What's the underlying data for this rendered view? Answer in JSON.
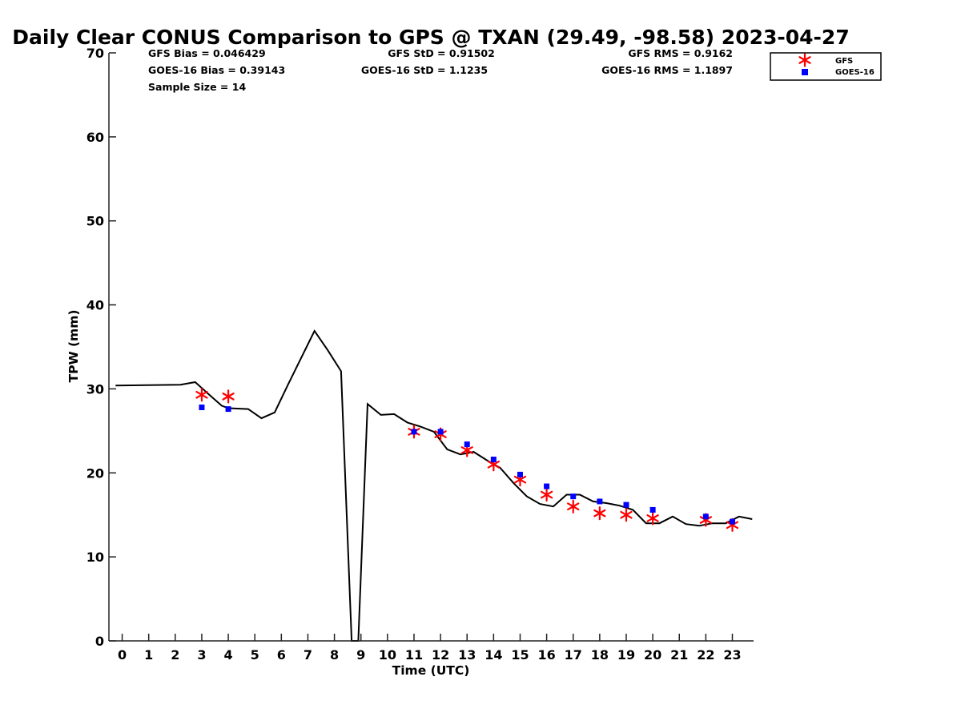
{
  "chart_data": {
    "type": "line",
    "title": "Daily Clear CONUS Comparison to GPS @ TXAN (29.49, -98.58) 2023-04-27",
    "xlabel": "Time (UTC)",
    "ylabel": "TPW (mm)",
    "xlim": [
      -0.5,
      23.8
    ],
    "ylim": [
      0,
      70
    ],
    "xticks": [
      "0",
      "1",
      "2",
      "3",
      "4",
      "5",
      "6",
      "7",
      "8",
      "9",
      "10",
      "11",
      "12",
      "13",
      "14",
      "15",
      "16",
      "17",
      "18",
      "19",
      "20",
      "21",
      "22",
      "23"
    ],
    "yticks": [
      "0",
      "10",
      "20",
      "30",
      "40",
      "50",
      "60",
      "70"
    ],
    "grid": false,
    "legend_position": "top-right",
    "stats": {
      "gfs_bias": "GFS Bias = 0.046429",
      "gfs_std": "GFS StD = 0.91502",
      "gfs_rms": "GFS RMS = 0.9162",
      "goes_bias": "GOES-16 Bias = 0.39143",
      "goes_std": "GOES-16 StD = 1.1235",
      "goes_rms": "GOES-16 RMS = 1.1897",
      "sample_size": "Sample Size = 14"
    },
    "series": [
      {
        "kind": "line",
        "color": "#000000",
        "points": [
          [
            -0.25,
            30.4
          ],
          [
            2.2,
            30.5
          ],
          [
            2.75,
            30.8
          ],
          [
            3.25,
            29.4
          ],
          [
            3.75,
            28.0
          ],
          [
            4.0,
            27.7
          ],
          [
            4.75,
            27.6
          ],
          [
            5.25,
            26.5
          ],
          [
            5.75,
            27.2
          ],
          [
            6.25,
            30.5
          ],
          [
            7.25,
            36.9
          ],
          [
            7.75,
            34.6
          ],
          [
            8.25,
            32.1
          ],
          [
            8.65,
            0
          ],
          [
            8.9,
            0
          ],
          [
            9.25,
            28.2
          ],
          [
            9.75,
            26.9
          ],
          [
            10.25,
            27.0
          ],
          [
            10.75,
            26.0
          ],
          [
            11.25,
            25.5
          ],
          [
            11.75,
            24.9
          ],
          [
            12.25,
            22.8
          ],
          [
            12.75,
            22.2
          ],
          [
            13.25,
            22.5
          ],
          [
            13.75,
            21.5
          ],
          [
            14.25,
            20.6
          ],
          [
            14.75,
            18.8
          ],
          [
            15.25,
            17.2
          ],
          [
            15.75,
            16.3
          ],
          [
            16.25,
            16.0
          ],
          [
            16.75,
            17.4
          ],
          [
            17.25,
            17.4
          ],
          [
            17.75,
            16.6
          ],
          [
            18.25,
            16.4
          ],
          [
            18.75,
            16.1
          ],
          [
            19.25,
            15.6
          ],
          [
            19.75,
            14.0
          ],
          [
            20.25,
            14.0
          ],
          [
            20.75,
            14.8
          ],
          [
            21.25,
            13.9
          ],
          [
            21.75,
            13.7
          ],
          [
            22.25,
            14.0
          ],
          [
            22.75,
            14.0
          ],
          [
            23.25,
            14.8
          ],
          [
            23.75,
            14.5
          ]
        ]
      },
      {
        "name": "GFS",
        "kind": "scatter",
        "marker": "asterisk",
        "color": "#ff0000",
        "points": [
          [
            3,
            29.3
          ],
          [
            4,
            29.1
          ],
          [
            11,
            24.9
          ],
          [
            12,
            24.6
          ],
          [
            13,
            22.7
          ],
          [
            14,
            21.0
          ],
          [
            15,
            19.2
          ],
          [
            16,
            17.4
          ],
          [
            17,
            16.0
          ],
          [
            18,
            15.2
          ],
          [
            19,
            15.0
          ],
          [
            20,
            14.6
          ],
          [
            22,
            14.4
          ],
          [
            23,
            13.8
          ]
        ]
      },
      {
        "name": "GOES-16",
        "kind": "scatter",
        "marker": "square",
        "color": "#0000ff",
        "points": [
          [
            3,
            27.8
          ],
          [
            4,
            27.6
          ],
          [
            11,
            24.9
          ],
          [
            12,
            24.9
          ],
          [
            13,
            23.4
          ],
          [
            14,
            21.6
          ],
          [
            15,
            19.8
          ],
          [
            16,
            18.4
          ],
          [
            17,
            17.2
          ],
          [
            18,
            16.6
          ],
          [
            19,
            16.2
          ],
          [
            20,
            15.6
          ],
          [
            22,
            14.8
          ],
          [
            23,
            14.2
          ]
        ]
      }
    ]
  }
}
